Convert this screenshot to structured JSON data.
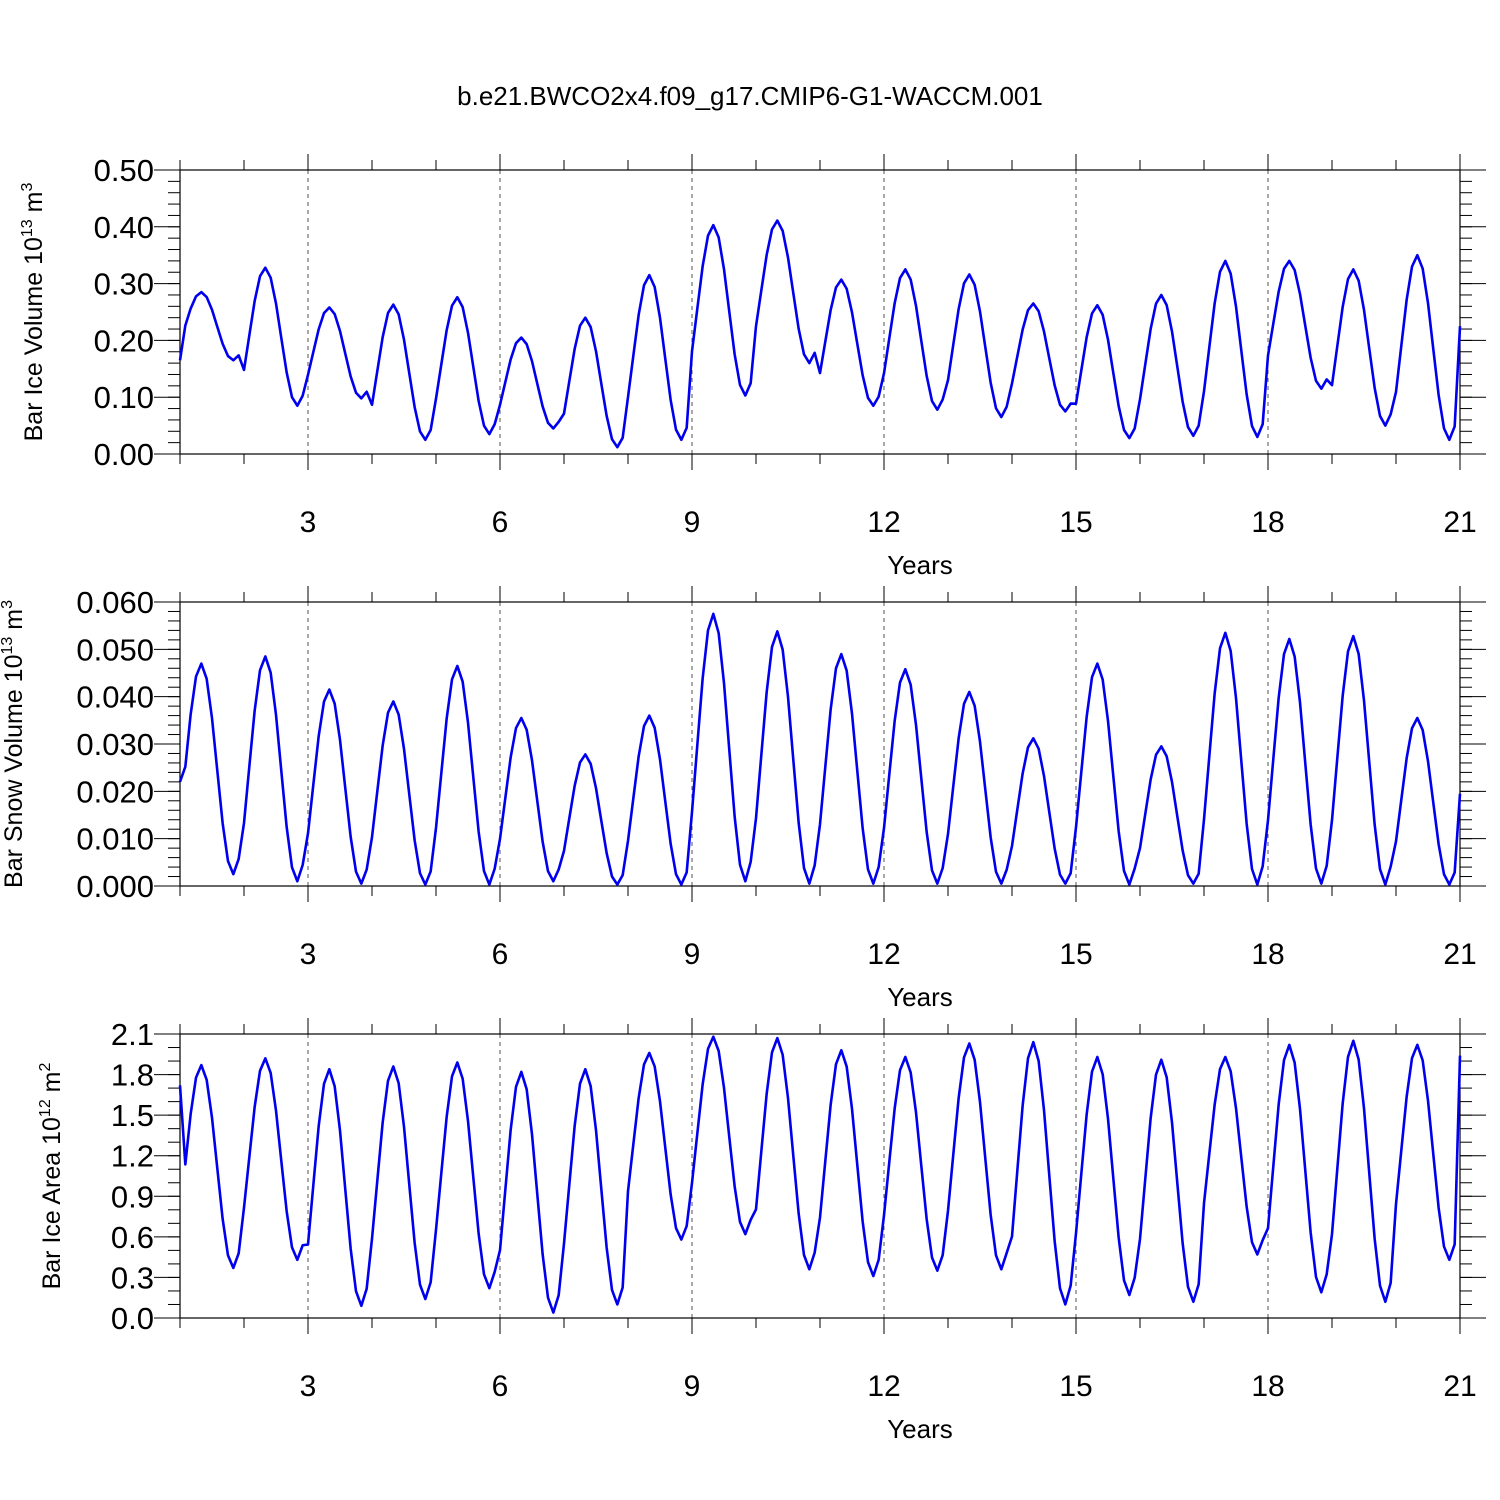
{
  "title": "b.e21.BWCO2x4.f09_g17.CMIP6-G1-WACCM.001",
  "line_color": "#0000ee",
  "chart_data": [
    {
      "type": "line",
      "name": "ice-volume",
      "ylabel_main": "Bar Ice Volume 10",
      "ylabel_exp": "13",
      "ylabel_unit": " m",
      "ylabel_unit_exp": "3",
      "xlabel": "Years",
      "xlim": [
        1.0,
        21.0
      ],
      "ylim": [
        0.0,
        0.5
      ],
      "xticks": [
        3,
        6,
        9,
        12,
        15,
        18,
        21
      ],
      "xtick_labels": [
        "3",
        "6",
        "9",
        "12",
        "15",
        "18",
        "21"
      ],
      "yticks": [
        0.0,
        0.1,
        0.2,
        0.3,
        0.4,
        0.5
      ],
      "ytick_labels": [
        "0.00",
        "0.10",
        "0.20",
        "0.30",
        "0.40",
        "0.50"
      ],
      "ymin_step": 0.02,
      "vgrid": true,
      "annual": [
        {
          "min": 0.165,
          "max": 0.285,
          "mid": 0.175
        },
        {
          "min": 0.085,
          "max": 0.328,
          "mid": 0.205
        },
        {
          "min": 0.098,
          "max": 0.258,
          "mid": 0.18
        },
        {
          "min": 0.025,
          "max": 0.263,
          "mid": 0.15
        },
        {
          "min": 0.035,
          "max": 0.276,
          "mid": 0.16
        },
        {
          "min": 0.045,
          "max": 0.205,
          "mid": 0.18
        },
        {
          "min": 0.012,
          "max": 0.24,
          "mid": 0.12
        },
        {
          "min": 0.025,
          "max": 0.315,
          "mid": 0.18
        },
        {
          "min": 0.103,
          "max": 0.403,
          "mid": 0.3
        },
        {
          "min": 0.16,
          "max": 0.411,
          "mid": 0.22
        },
        {
          "min": 0.085,
          "max": 0.307,
          "mid": 0.24
        },
        {
          "min": 0.078,
          "max": 0.325,
          "mid": 0.2
        },
        {
          "min": 0.065,
          "max": 0.316,
          "mid": 0.24
        },
        {
          "min": 0.075,
          "max": 0.265,
          "mid": 0.18
        },
        {
          "min": 0.028,
          "max": 0.262,
          "mid": 0.16
        },
        {
          "min": 0.032,
          "max": 0.28,
          "mid": 0.16
        },
        {
          "min": 0.03,
          "max": 0.34,
          "mid": 0.15
        },
        {
          "min": 0.115,
          "max": 0.34,
          "mid": 0.24
        },
        {
          "min": 0.05,
          "max": 0.325,
          "mid": 0.16
        },
        {
          "min": 0.025,
          "max": 0.35,
          "mid": 0.18
        }
      ],
      "start_value": 0.165,
      "end_value": 0.225
    },
    {
      "type": "line",
      "name": "snow-volume",
      "ylabel_main": "Bar Snow Volume 10",
      "ylabel_exp": "13",
      "ylabel_unit": " m",
      "ylabel_unit_exp": "3",
      "xlabel": "Years",
      "xlim": [
        1.0,
        21.0
      ],
      "ylim": [
        0.0,
        0.06
      ],
      "xticks": [
        3,
        6,
        9,
        12,
        15,
        18,
        21
      ],
      "xtick_labels": [
        "3",
        "6",
        "9",
        "12",
        "15",
        "18",
        "21"
      ],
      "yticks": [
        0.0,
        0.01,
        0.02,
        0.03,
        0.04,
        0.05,
        0.06
      ],
      "ytick_labels": [
        "0.000",
        "0.010",
        "0.020",
        "0.030",
        "0.040",
        "0.050",
        "0.060"
      ],
      "ymin_step": 0.002,
      "vgrid": true,
      "annual": [
        {
          "min": 0.0025,
          "max": 0.047,
          "mid": 0.03
        },
        {
          "min": 0.001,
          "max": 0.0485,
          "mid": 0.03
        },
        {
          "min": 0.0005,
          "max": 0.0415,
          "mid": 0.028
        },
        {
          "min": 0.0003,
          "max": 0.039,
          "mid": 0.025
        },
        {
          "min": 0.0003,
          "max": 0.0465,
          "mid": 0.025
        },
        {
          "min": 0.001,
          "max": 0.0355,
          "mid": 0.025
        },
        {
          "min": 0.0003,
          "max": 0.0278,
          "mid": 0.02
        },
        {
          "min": 0.0003,
          "max": 0.036,
          "mid": 0.02
        },
        {
          "min": 0.001,
          "max": 0.0575,
          "mid": 0.04
        },
        {
          "min": 0.0005,
          "max": 0.0538,
          "mid": 0.035
        },
        {
          "min": 0.0005,
          "max": 0.049,
          "mid": 0.035
        },
        {
          "min": 0.0005,
          "max": 0.0458,
          "mid": 0.03
        },
        {
          "min": 0.0005,
          "max": 0.041,
          "mid": 0.03
        },
        {
          "min": 0.0005,
          "max": 0.0312,
          "mid": 0.025
        },
        {
          "min": 0.0003,
          "max": 0.047,
          "mid": 0.03
        },
        {
          "min": 0.0005,
          "max": 0.0295,
          "mid": 0.02
        },
        {
          "min": 0.0003,
          "max": 0.0535,
          "mid": 0.035
        },
        {
          "min": 0.0005,
          "max": 0.0522,
          "mid": 0.035
        },
        {
          "min": 0.0003,
          "max": 0.0528,
          "mid": 0.035
        },
        {
          "min": 0.0003,
          "max": 0.0355,
          "mid": 0.025
        }
      ],
      "start_value": 0.022,
      "end_value": 0.0195
    },
    {
      "type": "line",
      "name": "ice-area",
      "ylabel_main": "Bar Ice Area 10",
      "ylabel_exp": "12",
      "ylabel_unit": " m",
      "ylabel_unit_exp": "2",
      "xlabel": "Years",
      "xlim": [
        1.0,
        21.0
      ],
      "ylim": [
        0.0,
        2.1
      ],
      "xticks": [
        3,
        6,
        9,
        12,
        15,
        18,
        21
      ],
      "xtick_labels": [
        "3",
        "6",
        "9",
        "12",
        "15",
        "18",
        "21"
      ],
      "yticks": [
        0.0,
        0.3,
        0.6,
        0.9,
        1.2,
        1.5,
        1.8,
        2.1
      ],
      "ytick_labels": [
        "0.0",
        "0.3",
        "0.6",
        "0.9",
        "1.2",
        "1.5",
        "1.8",
        "2.1"
      ],
      "ymin_step": 0.1,
      "vgrid": true,
      "annual": [
        {
          "min": 0.37,
          "max": 1.87,
          "mid": 1.75
        },
        {
          "min": 0.43,
          "max": 1.92,
          "mid": 1.8
        },
        {
          "min": 0.09,
          "max": 1.84,
          "mid": 1.7
        },
        {
          "min": 0.14,
          "max": 1.86,
          "mid": 1.7
        },
        {
          "min": 0.22,
          "max": 1.89,
          "mid": 1.7
        },
        {
          "min": 0.04,
          "max": 1.82,
          "mid": 1.6
        },
        {
          "min": 0.1,
          "max": 1.84,
          "mid": 1.6
        },
        {
          "min": 0.58,
          "max": 1.96,
          "mid": 1.8
        },
        {
          "min": 0.62,
          "max": 2.08,
          "mid": 1.95
        },
        {
          "min": 0.36,
          "max": 2.07,
          "mid": 1.95
        },
        {
          "min": 0.31,
          "max": 1.98,
          "mid": 1.85
        },
        {
          "min": 0.35,
          "max": 1.93,
          "mid": 1.8
        },
        {
          "min": 0.36,
          "max": 2.03,
          "mid": 1.9
        },
        {
          "min": 0.1,
          "max": 2.04,
          "mid": 1.9
        },
        {
          "min": 0.17,
          "max": 1.93,
          "mid": 1.85
        },
        {
          "min": 0.12,
          "max": 1.91,
          "mid": 1.8
        },
        {
          "min": 0.47,
          "max": 1.93,
          "mid": 1.8
        },
        {
          "min": 0.19,
          "max": 2.02,
          "mid": 1.9
        },
        {
          "min": 0.12,
          "max": 2.05,
          "mid": 1.9
        },
        {
          "min": 0.43,
          "max": 2.02,
          "mid": 1.9
        }
      ],
      "start_value": 1.72,
      "end_value": 1.94
    }
  ]
}
